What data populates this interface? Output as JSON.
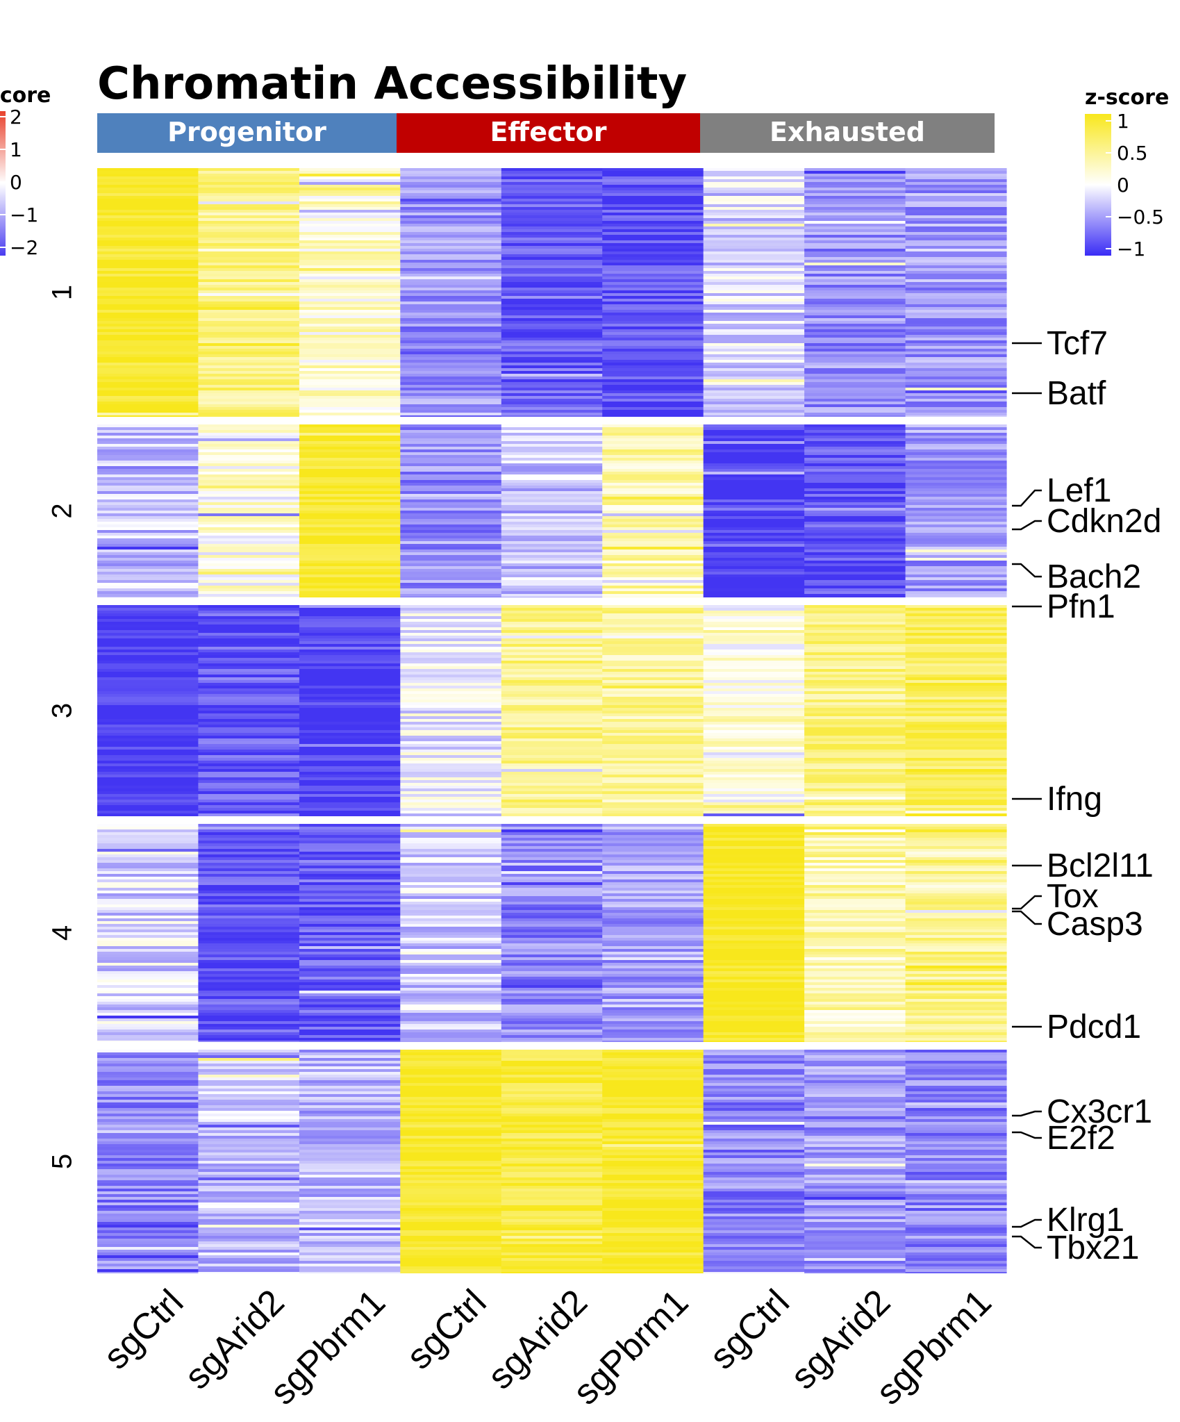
{
  "chart_data": {
    "type": "heatmap",
    "title": "Chromatin Accessibility",
    "column_groups": [
      {
        "name": "Progenitor",
        "color": "#4f81bd",
        "columns": [
          "sgCtrl",
          "sgArid2",
          "sgPbrm1"
        ]
      },
      {
        "name": "Effector",
        "color": "#c00000",
        "columns": [
          "sgCtrl",
          "sgArid2",
          "sgPbrm1"
        ]
      },
      {
        "name": "Exhausted",
        "color": "#808080",
        "columns": [
          "sgCtrl",
          "sgArid2",
          "sgPbrm1"
        ]
      }
    ],
    "columns": [
      "sgCtrl",
      "sgArid2",
      "sgPbrm1",
      "sgCtrl",
      "sgArid2",
      "sgPbrm1",
      "sgCtrl",
      "sgArid2",
      "sgPbrm1"
    ],
    "row_clusters": [
      {
        "label": "1",
        "mean_zscores": [
          0.95,
          0.55,
          0.2,
          -0.55,
          -0.8,
          -0.85,
          -0.2,
          -0.55,
          -0.5
        ]
      },
      {
        "label": "2",
        "mean_zscores": [
          -0.3,
          0.1,
          0.95,
          -0.55,
          -0.3,
          0.35,
          -0.95,
          -0.85,
          -0.5
        ]
      },
      {
        "label": "3",
        "mean_zscores": [
          -1.0,
          -0.8,
          -0.95,
          -0.1,
          0.5,
          0.45,
          0.1,
          0.55,
          0.7
        ]
      },
      {
        "label": "4",
        "mean_zscores": [
          -0.2,
          -0.85,
          -0.8,
          -0.25,
          -0.6,
          -0.45,
          1.0,
          0.35,
          0.5
        ]
      },
      {
        "label": "5",
        "mean_zscores": [
          -0.6,
          -0.3,
          -0.35,
          0.95,
          0.85,
          0.95,
          -0.6,
          -0.5,
          -0.6
        ]
      }
    ],
    "gene_annotations": [
      {
        "gene": "Tcf7",
        "cluster": "1"
      },
      {
        "gene": "Batf",
        "cluster": "1"
      },
      {
        "gene": "Lef1",
        "cluster": "2"
      },
      {
        "gene": "Cdkn2d",
        "cluster": "2"
      },
      {
        "gene": "Bach2",
        "cluster": "2"
      },
      {
        "gene": "Pfn1",
        "cluster": "3"
      },
      {
        "gene": "Ifng",
        "cluster": "3"
      },
      {
        "gene": "Bcl2l11",
        "cluster": "4"
      },
      {
        "gene": "Tox",
        "cluster": "4"
      },
      {
        "gene": "Casp3",
        "cluster": "4"
      },
      {
        "gene": "Pdcd1",
        "cluster": "4"
      },
      {
        "gene": "Cx3cr1",
        "cluster": "5"
      },
      {
        "gene": "E2f2",
        "cluster": "5"
      },
      {
        "gene": "Klrg1",
        "cluster": "5"
      },
      {
        "gene": "Tbx21",
        "cluster": "5"
      }
    ],
    "legends": [
      {
        "title": "z-score",
        "title_shown": "score",
        "ticks": [
          "2",
          "1",
          "0",
          "−1",
          "−2"
        ],
        "colors": [
          "#e8412c",
          "#ffffff",
          "#4a3cf0"
        ]
      },
      {
        "title": "z-score",
        "ticks": [
          "1",
          "0.5",
          "0",
          "−0.5",
          "−1"
        ],
        "colors": [
          "#f8e71c",
          "#ffffff",
          "#3a2cf5"
        ]
      }
    ],
    "zscore_range": [
      -1,
      1
    ],
    "colors": {
      "high": "#f8e71c",
      "mid": "#ffffff",
      "low": "#4335f2"
    }
  }
}
